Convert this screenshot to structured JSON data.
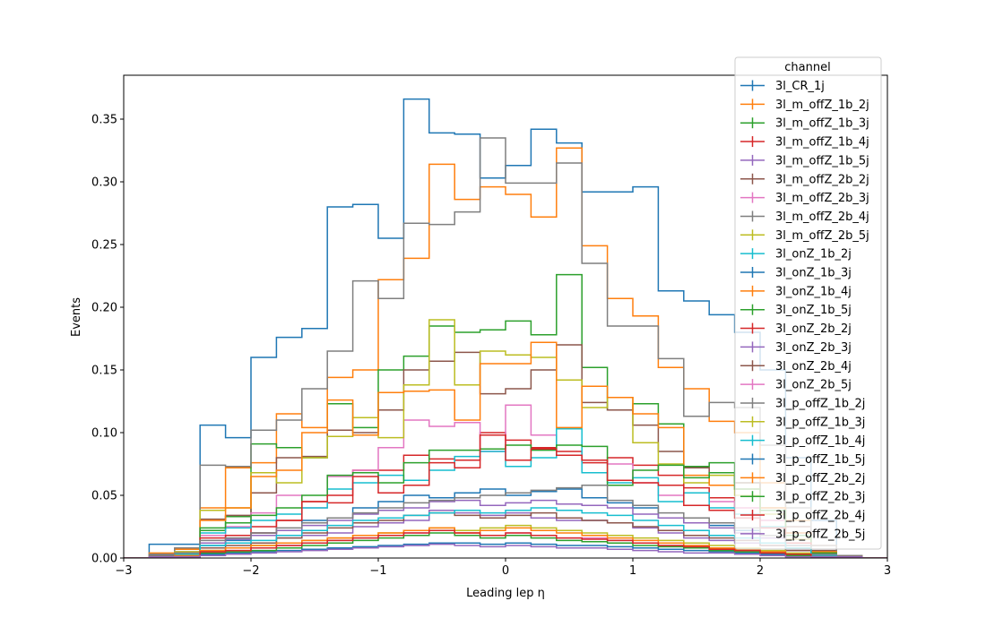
{
  "chart_data": {
    "type": "step-histogram",
    "xlabel": "Leading lep η",
    "ylabel": "Events",
    "xlim": [
      -3,
      3
    ],
    "ylim": [
      0,
      0.385
    ],
    "bin_edges": [
      -3.0,
      -2.8,
      -2.6,
      -2.4,
      -2.2,
      -2.0,
      -1.8,
      -1.6,
      -1.4,
      -1.2,
      -1.0,
      -0.8,
      -0.6,
      -0.4,
      -0.2,
      0.0,
      0.2,
      0.4,
      0.6,
      0.8,
      1.0,
      1.2,
      1.4,
      1.6,
      1.8,
      2.0,
      2.2,
      2.4,
      2.6,
      2.8,
      3.0
    ],
    "xticks": [
      -3,
      -2,
      -1,
      0,
      1,
      2,
      3
    ],
    "xtick_labels": [
      "−3",
      "−2",
      "−1",
      "0",
      "1",
      "2",
      "3"
    ],
    "yticks": [
      0.0,
      0.05,
      0.1,
      0.15,
      0.2,
      0.25,
      0.3,
      0.35
    ],
    "ytick_labels": [
      "0.00",
      "0.05",
      "0.10",
      "0.15",
      "0.20",
      "0.25",
      "0.30",
      "0.35"
    ],
    "legend": {
      "title": "channel",
      "placement": "top-right"
    },
    "series": [
      {
        "name": "3l_CR_1j",
        "color": "#1f77b4",
        "values": [
          0,
          0.011,
          0.011,
          0.106,
          0.096,
          0.16,
          0.176,
          0.183,
          0.28,
          0.282,
          0.255,
          0.366,
          0.339,
          0.338,
          0.303,
          0.313,
          0.342,
          0.331,
          0.292,
          0.292,
          0.296,
          0.213,
          0.205,
          0.194,
          0.18,
          0.15,
          0.08,
          0.03,
          0.002,
          0
        ]
      },
      {
        "name": "3l_m_offZ_1b_2j",
        "color": "#ff7f0e",
        "values": [
          0,
          0.004,
          0.007,
          0.04,
          0.072,
          0.076,
          0.115,
          0.104,
          0.144,
          0.15,
          0.222,
          0.239,
          0.314,
          0.286,
          0.296,
          0.29,
          0.272,
          0.327,
          0.249,
          0.207,
          0.193,
          0.152,
          0.135,
          0.109,
          0.1,
          0.06,
          0.03,
          0.01,
          0.002,
          0
        ]
      },
      {
        "name": "3l_m_offZ_1b_3j",
        "color": "#2ca02c",
        "values": [
          0,
          0.002,
          0.003,
          0.022,
          0.033,
          0.091,
          0.088,
          0.08,
          0.123,
          0.104,
          0.15,
          0.161,
          0.185,
          0.18,
          0.182,
          0.189,
          0.178,
          0.226,
          0.152,
          0.118,
          0.123,
          0.107,
          0.073,
          0.076,
          0.06,
          0.04,
          0.02,
          0.005,
          0.001,
          0
        ]
      },
      {
        "name": "3l_m_offZ_1b_4j",
        "color": "#d62728",
        "values": [
          0,
          0.001,
          0.002,
          0.012,
          0.018,
          0.025,
          0.03,
          0.045,
          0.044,
          0.07,
          0.07,
          0.082,
          0.079,
          0.078,
          0.1,
          0.094,
          0.088,
          0.085,
          0.076,
          0.08,
          0.074,
          0.066,
          0.056,
          0.048,
          0.04,
          0.03,
          0.02,
          0.004,
          0.001,
          0
        ]
      },
      {
        "name": "3l_m_offZ_1b_5j",
        "color": "#9467bd",
        "values": [
          0,
          0.001,
          0.001,
          0.006,
          0.008,
          0.012,
          0.016,
          0.018,
          0.02,
          0.025,
          0.028,
          0.03,
          0.038,
          0.036,
          0.034,
          0.036,
          0.032,
          0.03,
          0.03,
          0.028,
          0.024,
          0.02,
          0.016,
          0.014,
          0.012,
          0.01,
          0.006,
          0.002,
          0.001,
          0
        ]
      },
      {
        "name": "3l_m_offZ_2b_2j",
        "color": "#8c564b",
        "values": [
          0,
          0.002,
          0.005,
          0.031,
          0.034,
          0.052,
          0.08,
          0.081,
          0.102,
          0.1,
          0.118,
          0.15,
          0.157,
          0.164,
          0.131,
          0.135,
          0.15,
          0.17,
          0.124,
          0.118,
          0.106,
          0.085,
          0.072,
          0.068,
          0.06,
          0.04,
          0.025,
          0.006,
          0.001,
          0
        ]
      },
      {
        "name": "3l_m_offZ_2b_3j",
        "color": "#e377c2",
        "values": [
          0,
          0.002,
          0.004,
          0.018,
          0.025,
          0.036,
          0.05,
          0.04,
          0.065,
          0.07,
          0.088,
          0.11,
          0.105,
          0.108,
          0.085,
          0.122,
          0.098,
          0.082,
          0.078,
          0.075,
          0.06,
          0.05,
          0.052,
          0.045,
          0.04,
          0.03,
          0.015,
          0.004,
          0.001,
          0
        ]
      },
      {
        "name": "3l_m_offZ_2b_4j",
        "color": "#7f7f7f",
        "values": [
          0,
          0.003,
          0.008,
          0.074,
          0.073,
          0.102,
          0.11,
          0.135,
          0.165,
          0.221,
          0.207,
          0.267,
          0.266,
          0.276,
          0.335,
          0.299,
          0.299,
          0.315,
          0.235,
          0.185,
          0.185,
          0.159,
          0.113,
          0.124,
          0.12,
          0.09,
          0.04,
          0.01,
          0.002,
          0
        ]
      },
      {
        "name": "3l_m_offZ_2b_5j",
        "color": "#bcbd22",
        "values": [
          0,
          0.002,
          0.005,
          0.038,
          0.04,
          0.068,
          0.06,
          0.08,
          0.097,
          0.112,
          0.096,
          0.138,
          0.19,
          0.138,
          0.165,
          0.162,
          0.16,
          0.142,
          0.12,
          0.128,
          0.092,
          0.075,
          0.06,
          0.066,
          0.05,
          0.035,
          0.015,
          0.004,
          0.001,
          0
        ]
      },
      {
        "name": "3l_onZ_1b_2j",
        "color": "#17becf",
        "values": [
          0,
          0.001,
          0.003,
          0.02,
          0.024,
          0.03,
          0.035,
          0.04,
          0.055,
          0.06,
          0.066,
          0.062,
          0.07,
          0.081,
          0.085,
          0.073,
          0.08,
          0.103,
          0.068,
          0.06,
          0.064,
          0.045,
          0.052,
          0.04,
          0.035,
          0.025,
          0.012,
          0.003,
          0.001,
          0
        ]
      },
      {
        "name": "3l_onZ_1b_3j",
        "color": "#1f77b4",
        "values": [
          0,
          0.001,
          0.002,
          0.01,
          0.014,
          0.02,
          0.022,
          0.03,
          0.032,
          0.04,
          0.045,
          0.05,
          0.048,
          0.052,
          0.055,
          0.05,
          0.053,
          0.055,
          0.048,
          0.044,
          0.04,
          0.032,
          0.028,
          0.026,
          0.022,
          0.018,
          0.01,
          0.003,
          0.001,
          0
        ]
      },
      {
        "name": "3l_onZ_1b_4j",
        "color": "#ff7f0e",
        "values": [
          0,
          0.001,
          0.002,
          0.03,
          0.04,
          0.065,
          0.07,
          0.1,
          0.126,
          0.098,
          0.132,
          0.133,
          0.134,
          0.11,
          0.155,
          0.155,
          0.172,
          0.104,
          0.137,
          0.128,
          0.115,
          0.104,
          0.066,
          0.058,
          0.055,
          0.04,
          0.02,
          0.005,
          0.001,
          0
        ]
      },
      {
        "name": "3l_onZ_1b_5j",
        "color": "#2ca02c",
        "values": [
          0,
          0.001,
          0.002,
          0.024,
          0.028,
          0.034,
          0.04,
          0.05,
          0.066,
          0.068,
          0.06,
          0.076,
          0.086,
          0.086,
          0.087,
          0.09,
          0.086,
          0.09,
          0.089,
          0.058,
          0.07,
          0.074,
          0.064,
          0.068,
          0.055,
          0.038,
          0.018,
          0.004,
          0.001,
          0
        ]
      },
      {
        "name": "3l_onZ_2b_2j",
        "color": "#d62728",
        "values": [
          0,
          0.001,
          0.002,
          0.016,
          0.018,
          0.02,
          0.03,
          0.045,
          0.05,
          0.065,
          0.052,
          0.058,
          0.076,
          0.072,
          0.098,
          0.078,
          0.087,
          0.082,
          0.078,
          0.062,
          0.06,
          0.058,
          0.042,
          0.038,
          0.032,
          0.024,
          0.012,
          0.003,
          0.001,
          0
        ]
      },
      {
        "name": "3l_onZ_2b_3j",
        "color": "#9467bd",
        "values": [
          0,
          0.001,
          0.002,
          0.012,
          0.015,
          0.018,
          0.022,
          0.026,
          0.03,
          0.035,
          0.038,
          0.04,
          0.045,
          0.046,
          0.042,
          0.044,
          0.046,
          0.043,
          0.042,
          0.04,
          0.035,
          0.032,
          0.028,
          0.024,
          0.02,
          0.016,
          0.008,
          0.002,
          0.001,
          0
        ]
      },
      {
        "name": "3l_onZ_2b_4j",
        "color": "#8c564b",
        "values": [
          0,
          0.001,
          0.002,
          0.008,
          0.01,
          0.012,
          0.016,
          0.02,
          0.024,
          0.028,
          0.03,
          0.034,
          0.036,
          0.034,
          0.032,
          0.034,
          0.036,
          0.032,
          0.03,
          0.028,
          0.025,
          0.022,
          0.018,
          0.016,
          0.014,
          0.01,
          0.006,
          0.002,
          0.001,
          0
        ]
      },
      {
        "name": "3l_onZ_2b_5j",
        "color": "#e377c2",
        "values": [
          0,
          0.001,
          0.001,
          0.004,
          0.006,
          0.008,
          0.01,
          0.012,
          0.014,
          0.016,
          0.018,
          0.02,
          0.022,
          0.02,
          0.018,
          0.02,
          0.018,
          0.016,
          0.016,
          0.014,
          0.012,
          0.01,
          0.009,
          0.008,
          0.006,
          0.005,
          0.003,
          0.001,
          0.001,
          0
        ]
      },
      {
        "name": "3l_p_offZ_1b_2j",
        "color": "#7f7f7f",
        "values": [
          0,
          0.002,
          0.004,
          0.014,
          0.016,
          0.02,
          0.024,
          0.028,
          0.032,
          0.036,
          0.04,
          0.044,
          0.046,
          0.048,
          0.05,
          0.052,
          0.054,
          0.056,
          0.058,
          0.046,
          0.042,
          0.036,
          0.032,
          0.028,
          0.024,
          0.018,
          0.01,
          0.003,
          0.001,
          0
        ]
      },
      {
        "name": "3l_p_offZ_1b_3j",
        "color": "#bcbd22",
        "values": [
          0,
          0.001,
          0.002,
          0.006,
          0.008,
          0.01,
          0.012,
          0.014,
          0.016,
          0.018,
          0.02,
          0.022,
          0.024,
          0.022,
          0.024,
          0.026,
          0.024,
          0.022,
          0.02,
          0.018,
          0.016,
          0.014,
          0.012,
          0.01,
          0.008,
          0.006,
          0.004,
          0.001,
          0.001,
          0
        ]
      },
      {
        "name": "3l_p_offZ_1b_4j",
        "color": "#17becf",
        "values": [
          0,
          0.001,
          0.002,
          0.01,
          0.012,
          0.014,
          0.018,
          0.022,
          0.026,
          0.03,
          0.032,
          0.034,
          0.036,
          0.038,
          0.036,
          0.038,
          0.04,
          0.038,
          0.036,
          0.034,
          0.03,
          0.026,
          0.022,
          0.018,
          0.016,
          0.012,
          0.008,
          0.002,
          0.001,
          0
        ]
      },
      {
        "name": "3l_p_offZ_1b_5j",
        "color": "#1f77b4",
        "values": [
          0,
          0.001,
          0.001,
          0.003,
          0.004,
          0.005,
          0.006,
          0.007,
          0.008,
          0.009,
          0.01,
          0.011,
          0.012,
          0.012,
          0.011,
          0.012,
          0.011,
          0.01,
          0.01,
          0.009,
          0.008,
          0.007,
          0.006,
          0.005,
          0.004,
          0.003,
          0.002,
          0.001,
          0.001,
          0
        ]
      },
      {
        "name": "3l_p_offZ_2b_2j",
        "color": "#ff7f0e",
        "values": [
          0,
          0.001,
          0.002,
          0.006,
          0.008,
          0.01,
          0.012,
          0.014,
          0.016,
          0.018,
          0.02,
          0.022,
          0.024,
          0.02,
          0.022,
          0.024,
          0.022,
          0.02,
          0.018,
          0.016,
          0.014,
          0.012,
          0.01,
          0.008,
          0.007,
          0.005,
          0.003,
          0.001,
          0.001,
          0
        ]
      },
      {
        "name": "3l_p_offZ_2b_3j",
        "color": "#2ca02c",
        "values": [
          0,
          0.001,
          0.001,
          0.004,
          0.005,
          0.006,
          0.008,
          0.01,
          0.012,
          0.014,
          0.016,
          0.018,
          0.02,
          0.018,
          0.016,
          0.018,
          0.016,
          0.014,
          0.013,
          0.012,
          0.01,
          0.009,
          0.008,
          0.006,
          0.005,
          0.004,
          0.002,
          0.001,
          0.001,
          0
        ]
      },
      {
        "name": "3l_p_offZ_2b_4j",
        "color": "#d62728",
        "values": [
          0,
          0.001,
          0.001,
          0.005,
          0.006,
          0.008,
          0.01,
          0.012,
          0.014,
          0.016,
          0.018,
          0.02,
          0.022,
          0.02,
          0.018,
          0.02,
          0.018,
          0.016,
          0.015,
          0.014,
          0.012,
          0.01,
          0.009,
          0.007,
          0.006,
          0.004,
          0.003,
          0.001,
          0.001,
          0
        ]
      },
      {
        "name": "3l_p_offZ_2b_5j",
        "color": "#9467bd",
        "values": [
          0,
          0.001,
          0.001,
          0.002,
          0.003,
          0.004,
          0.005,
          0.006,
          0.007,
          0.008,
          0.009,
          0.01,
          0.011,
          0.01,
          0.009,
          0.01,
          0.009,
          0.008,
          0.008,
          0.007,
          0.006,
          0.005,
          0.004,
          0.004,
          0.003,
          0.002,
          0.001,
          0.001,
          0.001,
          0
        ]
      }
    ]
  }
}
